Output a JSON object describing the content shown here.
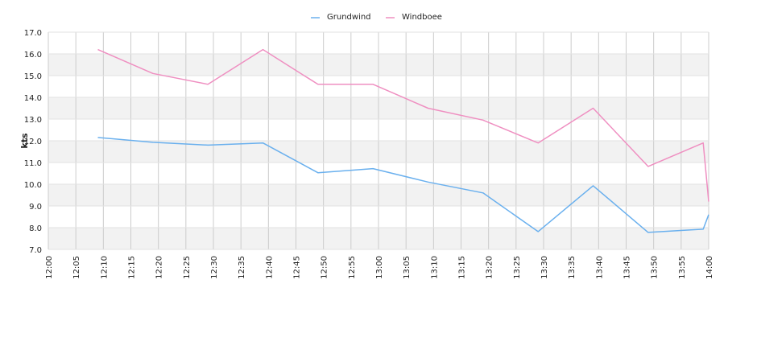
{
  "chart_data": {
    "type": "line",
    "title": "",
    "xlabel": "",
    "ylabel": "kts",
    "xlim": [
      "12:00",
      "14:00"
    ],
    "ylim": [
      7.0,
      17.0
    ],
    "x_ticks": [
      "12:00",
      "12:05",
      "12:10",
      "12:15",
      "12:20",
      "12:25",
      "12:30",
      "12:35",
      "12:40",
      "12:45",
      "12:50",
      "12:55",
      "13:00",
      "13:05",
      "13:10",
      "13:15",
      "13:20",
      "13:25",
      "13:30",
      "13:35",
      "13:40",
      "13:45",
      "13:50",
      "13:55",
      "14:00"
    ],
    "y_ticks": [
      "7.0",
      "8.0",
      "9.0",
      "10.0",
      "11.0",
      "12.0",
      "13.0",
      "14.0",
      "15.0",
      "16.0",
      "17.0"
    ],
    "grid": true,
    "legend_position": "top-center",
    "series": [
      {
        "name": "Grundwind",
        "color": "#6ab0ee",
        "points": [
          [
            "12:09",
            12.15
          ],
          [
            "12:19",
            11.93
          ],
          [
            "12:29",
            11.8
          ],
          [
            "12:39",
            11.9
          ],
          [
            "12:49",
            10.53
          ],
          [
            "12:59",
            10.72
          ],
          [
            "13:09",
            10.1
          ],
          [
            "13:19",
            9.6
          ],
          [
            "13:29",
            7.82
          ],
          [
            "13:39",
            9.93
          ],
          [
            "13:49",
            7.78
          ],
          [
            "13:59",
            7.93
          ],
          [
            "14:00",
            8.6
          ]
        ]
      },
      {
        "name": "Windboee",
        "color": "#ef8fc1",
        "points": [
          [
            "12:09",
            16.2
          ],
          [
            "12:19",
            15.1
          ],
          [
            "12:29",
            14.6
          ],
          [
            "12:39",
            16.2
          ],
          [
            "12:49",
            14.6
          ],
          [
            "12:59",
            14.6
          ],
          [
            "13:09",
            13.5
          ],
          [
            "13:19",
            12.95
          ],
          [
            "13:29",
            11.9
          ],
          [
            "13:39",
            13.5
          ],
          [
            "13:49",
            10.82
          ],
          [
            "13:59",
            11.9
          ],
          [
            "14:00",
            9.2
          ]
        ]
      }
    ]
  }
}
